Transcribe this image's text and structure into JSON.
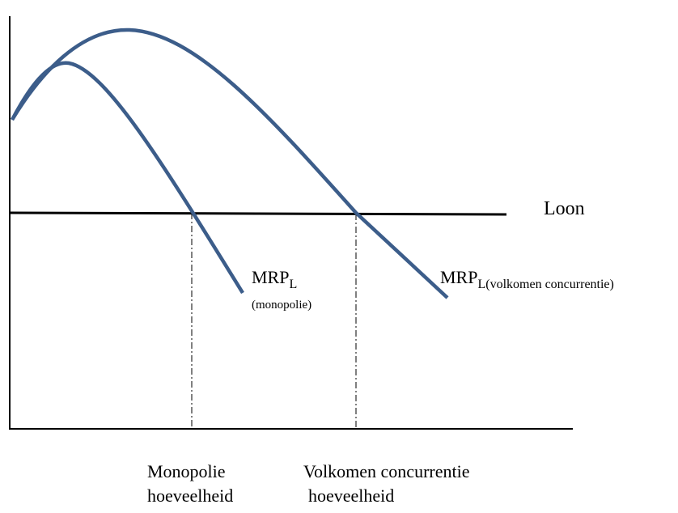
{
  "labels": {
    "wage": "Loon",
    "mrp_monopoly": {
      "main": "MRP",
      "subscript": "L",
      "note": "(monopolie)"
    },
    "mrp_competition": {
      "main": "MRP",
      "subscript": "L(volkomen concurrentie)"
    }
  },
  "x_labels": [
    {
      "line1": "Monopolie",
      "line2": "hoeveelheid"
    },
    {
      "line1": "Volkomen concurrentie",
      "line2": "hoeveelheid"
    }
  ]
}
